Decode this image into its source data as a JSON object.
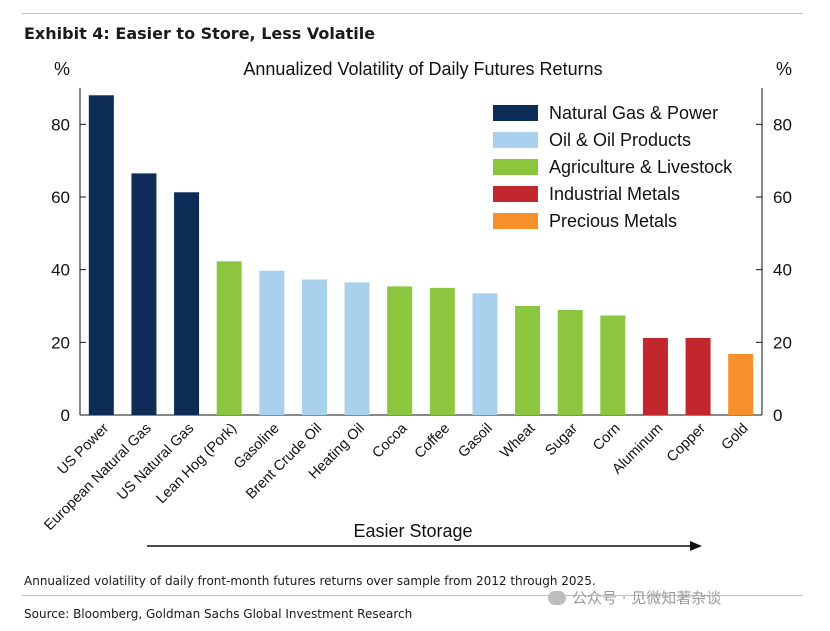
{
  "exhibit_title": "Exhibit 4: Easier to Store, Less Volatile",
  "footnote": "Annualized volatility of daily front-month futures returns over sample from 2012 through 2025.",
  "source": "Source: Bloomberg, Goldman Sachs Global Investment Research",
  "watermark": "公众号 · 见微知著杂谈",
  "chart_data": {
    "type": "bar",
    "title": "Annualized Volatility of Daily Futures Returns",
    "ylabel_left": "%",
    "ylabel_right": "%",
    "ylim": [
      0,
      90
    ],
    "yticks": [
      0,
      20,
      40,
      60,
      80
    ],
    "grid": false,
    "legend_position": "top-right",
    "arrow_label": "Easier Storage",
    "legend": [
      {
        "name": "Natural Gas & Power",
        "color": "#0d2d57"
      },
      {
        "name": "Oil & Oil Products",
        "color": "#a9d1ee"
      },
      {
        "name": "Agriculture & Livestock",
        "color": "#8cc63f"
      },
      {
        "name": "Industrial Metals",
        "color": "#c2272d"
      },
      {
        "name": "Precious Metals",
        "color": "#f7902a"
      }
    ],
    "categories": [
      "US Power",
      "European Natural Gas",
      "US Natural Gas",
      "Lean Hog (Pork)",
      "Gasoline",
      "Brent Crude Oil",
      "Heating Oil",
      "Cocoa",
      "Coffee",
      "Gasoil",
      "Wheat",
      "Sugar",
      "Corn",
      "Aluminum",
      "Copper",
      "Gold"
    ],
    "values": [
      88,
      66.5,
      61.3,
      42.3,
      39.7,
      37.3,
      36.5,
      35.4,
      35,
      33.5,
      30,
      28.9,
      27.4,
      21.2,
      21.2,
      16.8
    ],
    "groups": [
      0,
      0,
      0,
      2,
      1,
      1,
      1,
      2,
      2,
      1,
      2,
      2,
      2,
      3,
      3,
      4
    ]
  }
}
